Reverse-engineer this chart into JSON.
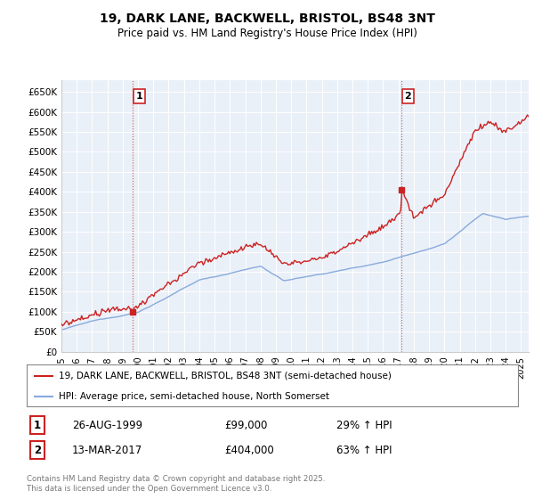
{
  "title": "19, DARK LANE, BACKWELL, BRISTOL, BS48 3NT",
  "subtitle": "Price paid vs. HM Land Registry's House Price Index (HPI)",
  "ylim": [
    0,
    680000
  ],
  "yticks": [
    0,
    50000,
    100000,
    150000,
    200000,
    250000,
    300000,
    350000,
    400000,
    450000,
    500000,
    550000,
    600000,
    650000
  ],
  "ytick_labels": [
    "£0",
    "£50K",
    "£100K",
    "£150K",
    "£200K",
    "£250K",
    "£300K",
    "£350K",
    "£400K",
    "£450K",
    "£500K",
    "£550K",
    "£600K",
    "£650K"
  ],
  "background_color": "#ffffff",
  "plot_bg_color": "#eaf0f8",
  "grid_color": "#ffffff",
  "red_color": "#cc2222",
  "blue_color": "#88aadd",
  "purchase1_year": 1999.65,
  "purchase1_price": 99000,
  "purchase2_year": 2017.2,
  "purchase2_price": 404000,
  "legend_line1": "19, DARK LANE, BACKWELL, BRISTOL, BS48 3NT (semi-detached house)",
  "legend_line2": "HPI: Average price, semi-detached house, North Somerset",
  "table_row1": [
    "1",
    "26-AUG-1999",
    "£99,000",
    "29% ↑ HPI"
  ],
  "table_row2": [
    "2",
    "13-MAR-2017",
    "£404,000",
    "63% ↑ HPI"
  ],
  "footnote": "Contains HM Land Registry data © Crown copyright and database right 2025.\nThis data is licensed under the Open Government Licence v3.0.",
  "xmin": 1995,
  "xmax": 2025.5
}
